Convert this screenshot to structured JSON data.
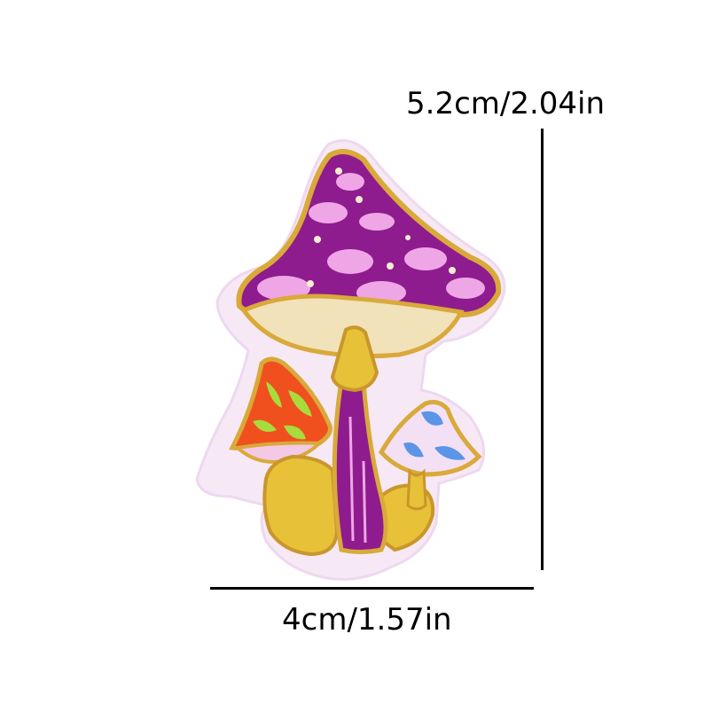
{
  "product": {
    "image_name": "mushroom-embroidered-patch",
    "colors": {
      "backing": "#f6e9f5",
      "border": "#d9a93a",
      "cap_purple": "#8e1c8e",
      "cap_pink": "#efa6e6",
      "gills": "#f1e2b9",
      "stem_yellow": "#e7c138",
      "small_cap_orange": "#f0501e",
      "small_cap_green": "#a7dc3c",
      "blue_cap": "#5a95e8"
    }
  },
  "dimensions": {
    "height_label": "5.2cm/2.04in",
    "width_label": "4cm/1.57in"
  }
}
